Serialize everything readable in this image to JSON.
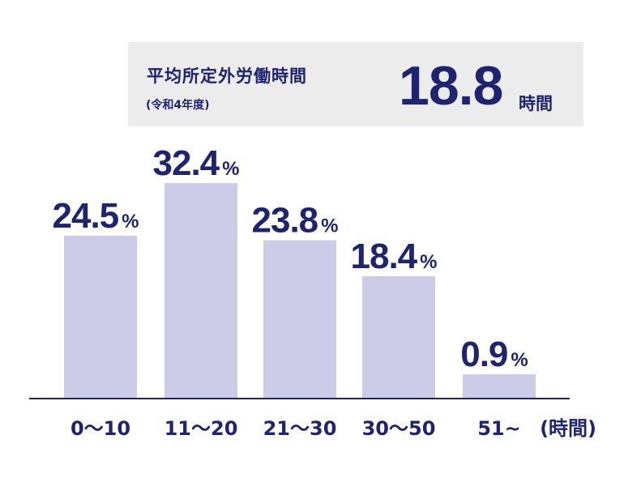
{
  "summary": {
    "label": "平均所定外労働時間",
    "sublabel": "(令和4年度)",
    "value": "18.8",
    "unit": "時間"
  },
  "chart_data": {
    "type": "bar",
    "categories": [
      "0〜10",
      "11〜20",
      "21〜30",
      "30〜50",
      "51~"
    ],
    "values": [
      24.5,
      32.4,
      23.8,
      18.4,
      0.9
    ],
    "value_suffix": "%",
    "xlabel": "(時間)",
    "ylim": [
      0,
      40
    ],
    "grid": false,
    "colors": {
      "bar": "#cccce9",
      "text": "#1e2470",
      "box": "#ececec"
    }
  }
}
